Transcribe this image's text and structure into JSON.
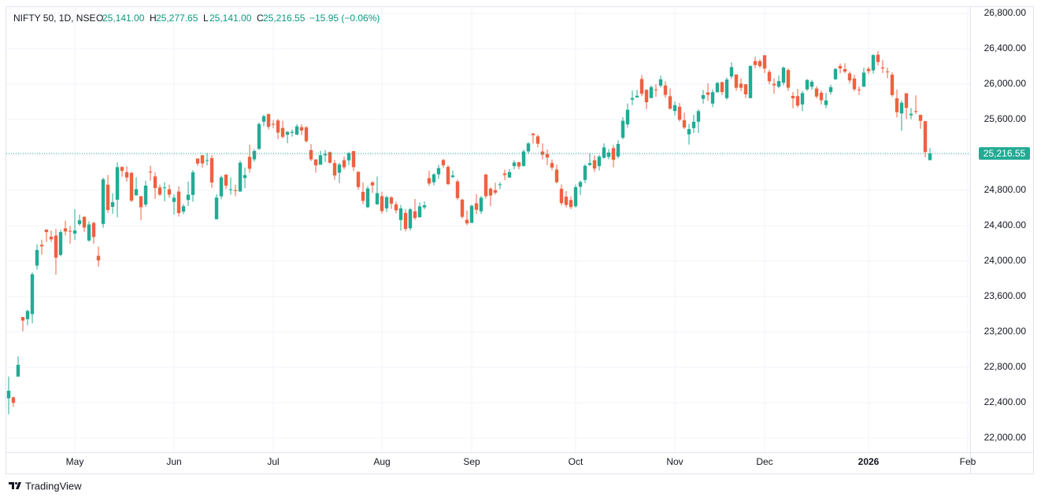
{
  "chart_data": {
    "type": "candlestick",
    "legend": {
      "symbol": "NIFTY 50, 1D, NSE",
      "fields": [
        {
          "key": "O",
          "value": "25,141.00"
        },
        {
          "key": "H",
          "value": "25,277.65"
        },
        {
          "key": "L",
          "value": "25,141.00"
        },
        {
          "key": "C",
          "value": "25,216.55"
        }
      ],
      "change": "−15.95 (−0.06%)"
    },
    "last_value_label": "25,216.55",
    "branding": "TradingView",
    "up_color": "#22ab94",
    "down_color": "#ee6141",
    "grid": true,
    "ylim": [
      21840,
      26862
    ],
    "yticks": [
      {
        "value": 22000,
        "label": "22,000.00"
      },
      {
        "value": 22400,
        "label": "22,400.00"
      },
      {
        "value": 22800,
        "label": "22,800.00"
      },
      {
        "value": 23200,
        "label": "23,200.00"
      },
      {
        "value": 23600,
        "label": "23,600.00"
      },
      {
        "value": 24000,
        "label": "24,000.00"
      },
      {
        "value": 24400,
        "label": "24,400.00"
      },
      {
        "value": 24800,
        "label": "24,800.00"
      },
      {
        "value": 25200,
        "label": "25,200.00"
      },
      {
        "value": 25600,
        "label": "25,600.00"
      },
      {
        "value": 26000,
        "label": "26,000.00"
      },
      {
        "value": 26400,
        "label": "26,400.00"
      },
      {
        "value": 26800,
        "label": "26,800.00"
      }
    ],
    "xlim": [
      -0.5,
      203.5
    ],
    "xticks": [
      {
        "value": 14,
        "label": "May"
      },
      {
        "value": 35,
        "label": "Jun"
      },
      {
        "value": 56,
        "label": "Jul"
      },
      {
        "value": 79,
        "label": "Aug"
      },
      {
        "value": 98,
        "label": "Sep"
      },
      {
        "value": 120,
        "label": "Oct"
      },
      {
        "value": 141,
        "label": "Nov"
      },
      {
        "value": 160,
        "label": "Dec"
      },
      {
        "value": 182,
        "label": "2026"
      },
      {
        "value": 203,
        "label": "Feb"
      }
    ],
    "candles": [
      [
        22450,
        22697,
        22270,
        22535
      ],
      [
        22460,
        22468,
        22353,
        22399
      ],
      [
        22695,
        22923,
        22695,
        22828
      ],
      [
        23368,
        23368,
        23207,
        23328
      ],
      [
        23344,
        23452,
        23273,
        23437
      ],
      [
        23401,
        23872,
        23298,
        23851
      ],
      [
        23949,
        24189,
        23903,
        24125
      ],
      [
        24185,
        24242,
        24072,
        24167
      ],
      [
        24357,
        24359,
        24216,
        24328
      ],
      [
        24277,
        24347,
        24216,
        24246
      ],
      [
        24289,
        24365,
        23847,
        24039
      ],
      [
        24070,
        24355,
        24054,
        24328
      ],
      [
        24370,
        24457,
        24290,
        24335
      ],
      [
        24342,
        24396,
        24198,
        24334
      ],
      [
        24311,
        24589,
        24238,
        24346
      ],
      [
        24419,
        24526,
        24400,
        24461
      ],
      [
        24500,
        24509,
        24331,
        24379
      ],
      [
        24233,
        24449,
        24220,
        24414
      ],
      [
        24431,
        24447,
        24197,
        24273
      ],
      [
        24060,
        24164,
        23935,
        24008
      ],
      [
        24420,
        24944,
        24378,
        24924
      ],
      [
        24864,
        24973,
        24547,
        24578
      ],
      [
        24613,
        24767,
        24535,
        24666
      ],
      [
        24694,
        25116,
        24494,
        25062
      ],
      [
        25064,
        25071,
        24953,
        25019
      ],
      [
        25005,
        25071,
        24900,
        24945
      ],
      [
        24997,
        25010,
        24669,
        24683
      ],
      [
        24745,
        24946,
        24738,
        24813
      ],
      [
        24733,
        24737,
        24462,
        24609
      ],
      [
        24639,
        24909,
        24614,
        24853
      ],
      [
        25011,
        25079,
        24910,
        25001
      ],
      [
        24957,
        25003,
        24704,
        24826
      ],
      [
        24832,
        24864,
        24737,
        24752
      ],
      [
        24825,
        24892,
        24677,
        24833
      ],
      [
        24812,
        24864,
        24717,
        24751
      ],
      [
        24669,
        24754,
        24526,
        24716
      ],
      [
        24786,
        24845,
        24502,
        24542
      ],
      [
        24560,
        24644,
        24530,
        24620
      ],
      [
        24691,
        24899,
        24621,
        24751
      ],
      [
        24748,
        25029,
        24671,
        25003
      ],
      [
        25160,
        25160,
        25077,
        25103
      ],
      [
        25196,
        25199,
        25055,
        25104
      ],
      [
        25134,
        25222,
        25082,
        25141
      ],
      [
        25164,
        25196,
        24826,
        24888
      ],
      [
        24473,
        24754,
        24473,
        24718
      ],
      [
        24732,
        24967,
        24700,
        24946
      ],
      [
        24977,
        24982,
        24813,
        24853
      ],
      [
        24803,
        24947,
        24750,
        24812
      ],
      [
        24803,
        24864,
        24733,
        24793
      ],
      [
        24787,
        25137,
        24783,
        25112
      ],
      [
        24939,
        25057,
        24825,
        24972
      ],
      [
        25179,
        25317,
        24999,
        25044
      ],
      [
        25150,
        25266,
        25125,
        25245
      ],
      [
        25268,
        25565,
        25259,
        25549
      ],
      [
        25576,
        25654,
        25523,
        25637
      ],
      [
        25661,
        25669,
        25489,
        25517
      ],
      [
        25551,
        25593,
        25501,
        25541
      ],
      [
        25589,
        25608,
        25378,
        25453
      ],
      [
        25505,
        25587,
        25384,
        25405
      ],
      [
        25428,
        25470,
        25331,
        25461
      ],
      [
        25450,
        25489,
        25407,
        25461
      ],
      [
        25428,
        25548,
        25425,
        25523
      ],
      [
        25514,
        25548,
        25424,
        25476
      ],
      [
        25511,
        25525,
        25340,
        25355
      ],
      [
        25255,
        25323,
        25129,
        25150
      ],
      [
        25149,
        25152,
        25001,
        25082
      ],
      [
        25089,
        25245,
        25089,
        25196
      ],
      [
        25196,
        25255,
        25121,
        25212
      ],
      [
        25231,
        25238,
        25101,
        25112
      ],
      [
        25108,
        25144,
        24919,
        24968
      ],
      [
        24999,
        25111,
        24882,
        25091
      ],
      [
        25140,
        25182,
        25035,
        25061
      ],
      [
        25140,
        25233,
        25085,
        25220
      ],
      [
        25243,
        25247,
        25018,
        25062
      ],
      [
        25010,
        25011,
        24806,
        24837
      ],
      [
        24782,
        24889,
        24646,
        24681
      ],
      [
        24609,
        24847,
        24599,
        24821
      ],
      [
        24890,
        24903,
        24771,
        24855
      ],
      [
        24642,
        24956,
        24635,
        24768
      ],
      [
        24734,
        24784,
        24535,
        24565
      ],
      [
        24596,
        24736,
        24554,
        24723
      ],
      [
        24720,
        24733,
        24590,
        24650
      ],
      [
        24641,
        24671,
        24539,
        24574
      ],
      [
        24464,
        24634,
        24344,
        24596
      ],
      [
        24544,
        24586,
        24337,
        24363
      ],
      [
        24371,
        24602,
        24347,
        24585
      ],
      [
        24563,
        24702,
        24465,
        24487
      ],
      [
        24496,
        24664,
        24491,
        24619
      ],
      [
        24607,
        24674,
        24586,
        24631
      ],
      [
        24938,
        25022,
        24852,
        24877
      ],
      [
        24891,
        24994,
        24858,
        24980
      ],
      [
        24981,
        25089,
        24929,
        25051
      ],
      [
        25143,
        25154,
        25054,
        25083
      ],
      [
        25065,
        25085,
        24859,
        24870
      ],
      [
        24950,
        25022,
        24938,
        24968
      ],
      [
        24900,
        24919,
        24689,
        24712
      ],
      [
        24695,
        24702,
        24481,
        24501
      ],
      [
        24467,
        24572,
        24404,
        24427
      ],
      [
        24432,
        24636,
        24432,
        24625
      ],
      [
        24653,
        24756,
        24531,
        24580
      ],
      [
        24563,
        24737,
        24533,
        24716
      ],
      [
        24980,
        24981,
        24706,
        24734
      ],
      [
        24819,
        24833,
        24621,
        24741
      ],
      [
        24802,
        24885,
        24751,
        24773
      ],
      [
        24864,
        24891,
        24814,
        24868
      ],
      [
        24991,
        25035,
        24915,
        24973
      ],
      [
        24945,
        25038,
        24940,
        25006
      ],
      [
        25074,
        25139,
        25038,
        25114
      ],
      [
        25118,
        25120,
        25038,
        25070
      ],
      [
        25074,
        25261,
        25071,
        25239
      ],
      [
        25240,
        25345,
        25217,
        25330
      ],
      [
        25441,
        25449,
        25329,
        25424
      ],
      [
        25410,
        25428,
        25286,
        25327
      ],
      [
        25239,
        25331,
        25151,
        25203
      ],
      [
        25210,
        25261,
        25084,
        25170
      ],
      [
        25108,
        25150,
        25027,
        25057
      ],
      [
        25034,
        25092,
        24878,
        24891
      ],
      [
        24818,
        24868,
        24629,
        24655
      ],
      [
        24728,
        24792,
        24606,
        24634
      ],
      [
        24691,
        24731,
        24587,
        24611
      ],
      [
        24620,
        24867,
        24605,
        24836
      ],
      [
        24840,
        24909,
        24747,
        24894
      ],
      [
        24917,
        25095,
        24880,
        25077
      ],
      [
        25086,
        25220,
        25076,
        25108
      ],
      [
        25140,
        25192,
        25008,
        25046
      ],
      [
        25074,
        25199,
        25024,
        25181
      ],
      [
        25168,
        25330,
        25156,
        25285
      ],
      [
        25178,
        25267,
        25152,
        25227
      ],
      [
        25277,
        25310,
        25060,
        25145
      ],
      [
        25182,
        25365,
        25159,
        25324
      ],
      [
        25394,
        25625,
        25376,
        25586
      ],
      [
        25546,
        25781,
        25508,
        25710
      ],
      [
        25825,
        25926,
        25763,
        25843
      ],
      [
        25850,
        25934,
        25847,
        25869
      ],
      [
        26058,
        26104,
        25862,
        25891
      ],
      [
        25935,
        25944,
        25718,
        25795
      ],
      [
        25843,
        25987,
        25842,
        25966
      ],
      [
        25940,
        26002,
        25856,
        25936
      ],
      [
        25983,
        26097,
        25960,
        26054
      ],
      [
        25985,
        26032,
        25845,
        25878
      ],
      [
        25863,
        25953,
        25712,
        25722
      ],
      [
        25696,
        25803,
        25645,
        25763
      ],
      [
        25744,
        25787,
        25578,
        25598
      ],
      [
        25593,
        25679,
        25491,
        25510
      ],
      [
        25433,
        25551,
        25318,
        25492
      ],
      [
        25503,
        25653,
        25449,
        25574
      ],
      [
        25576,
        25715,
        25449,
        25695
      ],
      [
        25834,
        25934,
        25779,
        25876
      ],
      [
        25906,
        26010,
        25809,
        25879
      ],
      [
        25780,
        25940,
        25740,
        25910
      ],
      [
        25909,
        26025,
        25903,
        26013
      ],
      [
        26022,
        26029,
        25876,
        25910
      ],
      [
        25842,
        26075,
        25824,
        26052
      ],
      [
        26087,
        26246,
        26063,
        26192
      ],
      [
        26109,
        26110,
        25926,
        25959
      ],
      [
        26006,
        26065,
        25920,
        25959
      ],
      [
        25998,
        26000,
        25842,
        25885
      ],
      [
        25842,
        26215,
        25842,
        26205
      ],
      [
        26261,
        26310,
        26180,
        26216
      ],
      [
        26260,
        26281,
        26182,
        26203
      ],
      [
        26326,
        26326,
        26124,
        26176
      ],
      [
        26138,
        26162,
        25998,
        26032
      ],
      [
        26004,
        26066,
        25891,
        25986
      ],
      [
        25971,
        26098,
        25953,
        26034
      ],
      [
        26016,
        26202,
        25985,
        26186
      ],
      [
        26159,
        26178,
        25923,
        25960
      ],
      [
        25867,
        25911,
        25728,
        25840
      ],
      [
        25865,
        25947,
        25734,
        25758
      ],
      [
        25771,
        25922,
        25694,
        25898
      ],
      [
        25941,
        26058,
        25923,
        26047
      ],
      [
        25970,
        26048,
        25938,
        26027
      ],
      [
        25951,
        25977,
        25840,
        25860
      ],
      [
        25903,
        25929,
        25770,
        25818
      ],
      [
        25764,
        25902,
        25726,
        25816
      ],
      [
        25911,
        25993,
        25880,
        25966
      ],
      [
        26055,
        26180,
        26047,
        26172
      ],
      [
        26205,
        26233,
        26119,
        26177
      ],
      [
        26170,
        26236,
        26123,
        26142
      ],
      [
        26121,
        26144,
        26008,
        26042
      ],
      [
        26064,
        26105,
        25920,
        25942
      ],
      [
        25940,
        25976,
        25878,
        25938
      ],
      [
        25971,
        26187,
        25969,
        26130
      ],
      [
        26173,
        26197,
        26113,
        26147
      ],
      [
        26156,
        26340,
        26119,
        26328
      ],
      [
        26333,
        26373,
        26210,
        26250
      ],
      [
        26189,
        26273,
        26124,
        26178
      ],
      [
        26144,
        26187,
        26067,
        26140
      ],
      [
        26107,
        26133,
        25858,
        25877
      ],
      [
        25840,
        25940,
        25623,
        25683
      ],
      [
        25669,
        25813,
        25473,
        25790
      ],
      [
        25897,
        25899,
        25604,
        25732
      ],
      [
        25648,
        25730,
        25603,
        25665
      ],
      [
        25696,
        25873,
        25662,
        25694
      ],
      [
        25653,
        25654,
        25495,
        25585
      ],
      [
        25581,
        25585,
        25172,
        25232.5
      ],
      [
        25141,
        25277.65,
        25141,
        25216.55
      ]
    ]
  }
}
